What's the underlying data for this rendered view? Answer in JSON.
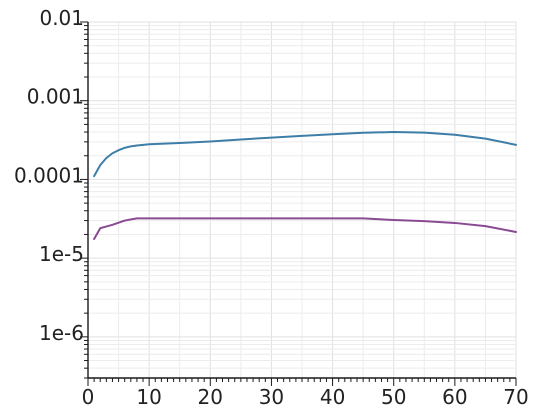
{
  "chart_data": {
    "type": "line",
    "title": "",
    "xlabel": "",
    "ylabel": "",
    "xlim": [
      0,
      70
    ],
    "ylim": [
      3e-07,
      0.01
    ],
    "y_scale": "log",
    "grid": true,
    "legend": "none",
    "x_ticks": [
      0,
      10,
      20,
      30,
      40,
      50,
      60,
      70
    ],
    "x_tick_labels": [
      "0",
      "10",
      "20",
      "30",
      "40",
      "50",
      "60",
      "70"
    ],
    "y_ticks": [
      0.01,
      0.001,
      0.0001,
      1e-05,
      1e-06
    ],
    "y_tick_labels": [
      "0.01",
      "0.001",
      "0.0001",
      "1e-5",
      "1e-6"
    ],
    "series": [
      {
        "color": "#3d7ea8",
        "x": [
          1,
          2,
          3,
          4,
          5,
          6,
          7,
          8,
          10,
          15,
          20,
          25,
          30,
          35,
          40,
          45,
          50,
          55,
          60,
          65,
          70
        ],
        "y": [
          0.00011,
          0.000152,
          0.000187,
          0.000215,
          0.000235,
          0.000252,
          0.000263,
          0.00027,
          0.00028,
          0.00029,
          0.000303,
          0.000322,
          0.00034,
          0.000358,
          0.000375,
          0.000392,
          0.0004,
          0.000393,
          0.00037,
          0.00033,
          0.000275
        ]
      },
      {
        "color": "#8a4a93",
        "x": [
          1,
          2,
          4,
          6,
          8,
          10,
          20,
          30,
          40,
          45,
          50,
          55,
          60,
          65,
          70
        ],
        "y": [
          1.75e-05,
          2.4e-05,
          2.65e-05,
          3e-05,
          3.2e-05,
          3.2e-05,
          3.2e-05,
          3.2e-05,
          3.2e-05,
          3.2e-05,
          3.05e-05,
          2.95e-05,
          2.8e-05,
          2.55e-05,
          2.15e-05
        ]
      }
    ]
  }
}
